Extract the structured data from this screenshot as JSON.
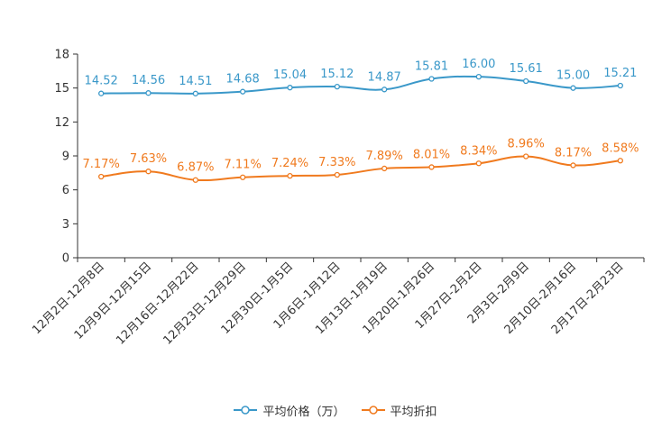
{
  "chart_data": {
    "type": "line",
    "title": "",
    "xlabel": "",
    "ylabel": "",
    "ylim": [
      0,
      18
    ],
    "yticks": [
      0,
      3,
      6,
      9,
      12,
      15,
      18
    ],
    "grid": false,
    "legend_position": "bottom-center",
    "categories": [
      "12月2日-12月8日",
      "12月9日-12月15日",
      "12月16日-12月22日",
      "12月23日-12月29日",
      "12月30日-1月5日",
      "1月6日-1月12日",
      "1月13日-1月19日",
      "1月20日-1月26日",
      "1月27日-2月2日",
      "2月3日-2月9日",
      "2月10日-2月16日",
      "2月17日-2月23日"
    ],
    "series": [
      {
        "name": "平均价格（万）",
        "color": "#3a98c9",
        "values": [
          14.52,
          14.56,
          14.51,
          14.68,
          15.04,
          15.12,
          14.87,
          15.81,
          16.0,
          15.61,
          15.0,
          15.21
        ],
        "labels": [
          "14.52",
          "14.56",
          "14.51",
          "14.68",
          "15.04",
          "15.12",
          "14.87",
          "15.81",
          "16.00",
          "15.61",
          "15.00",
          "15.21"
        ]
      },
      {
        "name": "平均折扣",
        "color": "#f07a1e",
        "values": [
          7.17,
          7.63,
          6.87,
          7.11,
          7.24,
          7.33,
          7.89,
          8.01,
          8.34,
          8.96,
          8.17,
          8.58
        ],
        "labels": [
          "7.17%",
          "7.63%",
          "6.87%",
          "7.11%",
          "7.24%",
          "7.33%",
          "7.89%",
          "8.01%",
          "8.34%",
          "8.96%",
          "8.17%",
          "8.58%"
        ]
      }
    ]
  }
}
